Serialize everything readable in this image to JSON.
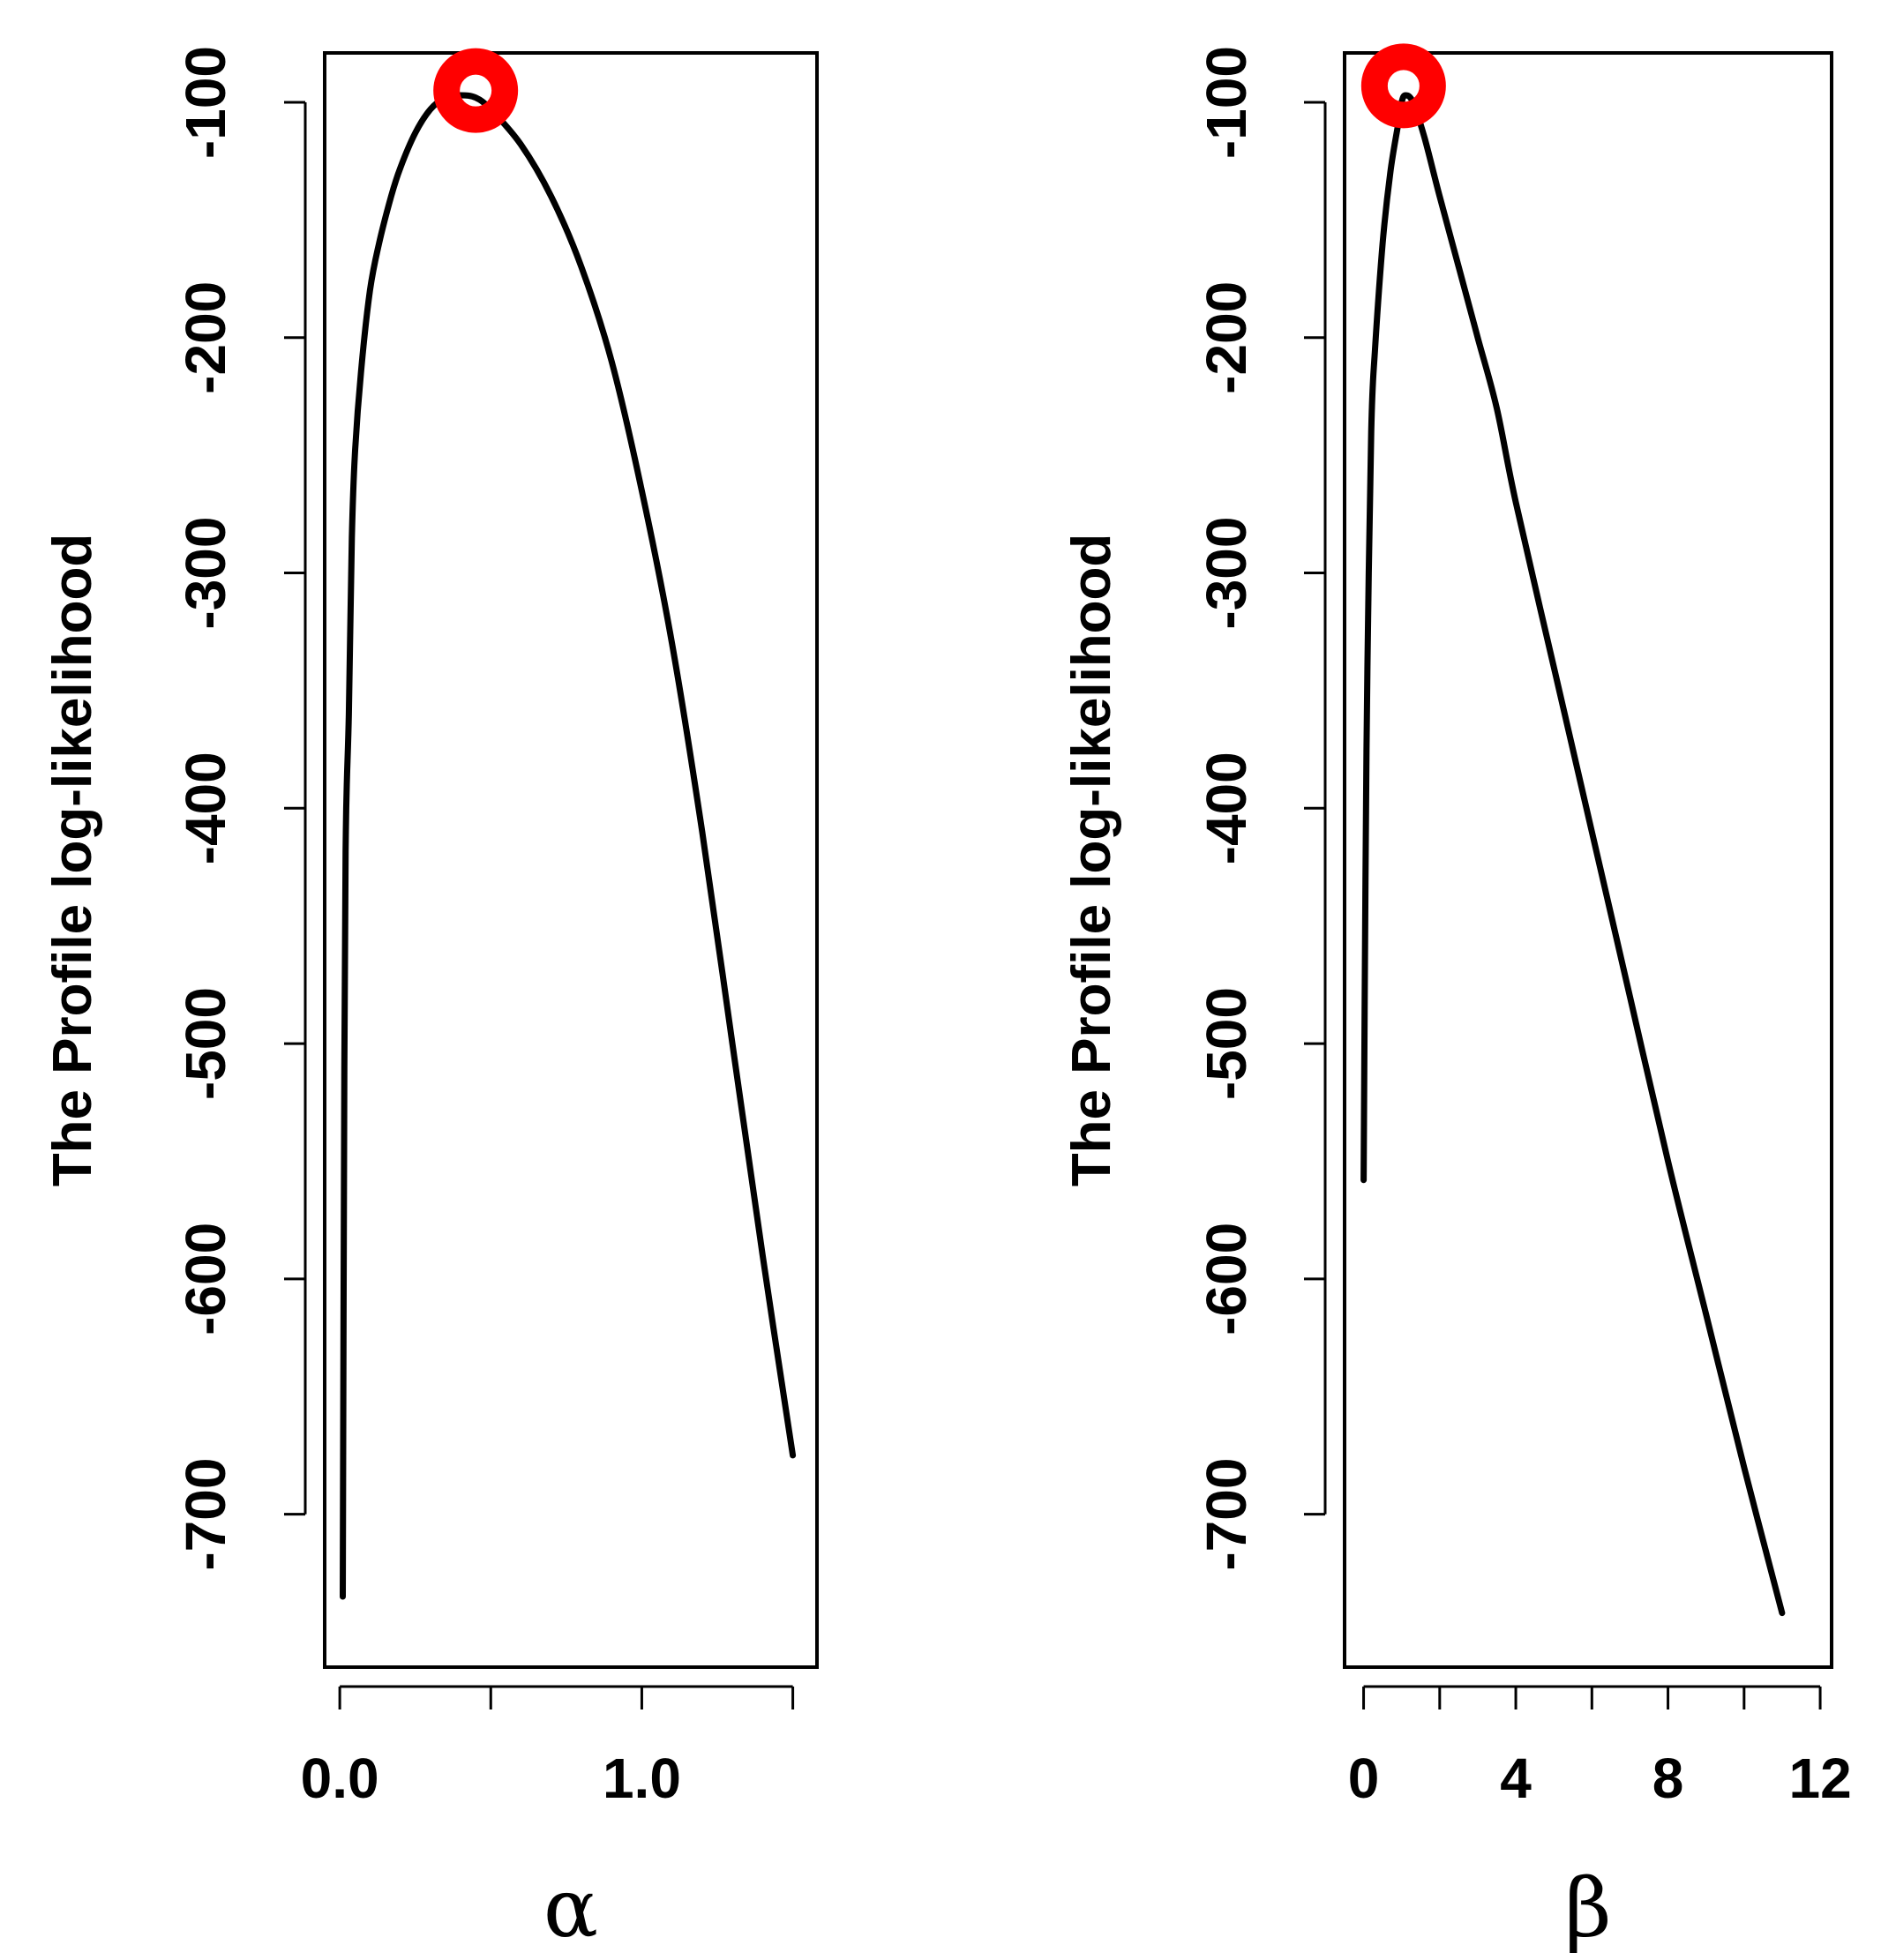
{
  "chart_data": [
    {
      "type": "line",
      "ylabel": "The Profile log-likelihood",
      "xlabel": "α",
      "xlim": [
        -0.05,
        1.58
      ],
      "ylim": [
        -765,
        -79
      ],
      "xticks": [
        0.0,
        0.5,
        1.0,
        1.5
      ],
      "xtick_labels": [
        "0.0",
        "",
        "1.0",
        ""
      ],
      "yticks": [
        -100,
        -200,
        -300,
        -400,
        -500,
        -600,
        -700
      ],
      "ytick_labels": [
        "-100",
        "-200",
        "-300",
        "-400",
        "-500",
        "-600",
        "-700"
      ],
      "line_color": "#000000",
      "series": [
        {
          "x": [
            0.01,
            0.015,
            0.02,
            0.03,
            0.04,
            0.05,
            0.07,
            0.1,
            0.13,
            0.17,
            0.2,
            0.25,
            0.3,
            0.35,
            0.4,
            0.45,
            0.5,
            0.6,
            0.7,
            0.8,
            0.9,
            1.0,
            1.1,
            1.2,
            1.3,
            1.4,
            1.5
          ],
          "y": [
            -735,
            -510,
            -410,
            -360,
            -285,
            -250,
            -215,
            -180,
            -160,
            -140,
            -128,
            -113,
            -103,
            -98,
            -97,
            -98,
            -103,
            -118,
            -140,
            -170,
            -210,
            -265,
            -330,
            -410,
            -500,
            -590,
            -675
          ]
        }
      ],
      "highlight_point": {
        "x": 0.45,
        "y": -95,
        "color": "#ff0000"
      },
      "grid": false
    },
    {
      "type": "line",
      "ylabel": "The Profile log-likelihood",
      "xlabel": "β",
      "xlim": [
        -0.5,
        12.3
      ],
      "ylim": [
        -765,
        -79
      ],
      "xticks": [
        0,
        2,
        4,
        6,
        8,
        10,
        12
      ],
      "xtick_labels": [
        "0",
        "",
        "4",
        "",
        "8",
        "",
        "12"
      ],
      "yticks": [
        -100,
        -200,
        -300,
        -400,
        -500,
        -600,
        -700
      ],
      "ytick_labels": [
        "-100",
        "-200",
        "-300",
        "-400",
        "-500",
        "-600",
        "-700"
      ],
      "line_color": "#000000",
      "series": [
        {
          "x": [
            0.0,
            0.05,
            0.1,
            0.2,
            0.3,
            0.5,
            0.7,
            0.9,
            1.0,
            1.1,
            1.3,
            1.6,
            2.0,
            2.5,
            3.0,
            3.5,
            4.0,
            5.0,
            6.0,
            7.0,
            8.0,
            9.0,
            10.0,
            11.0
          ],
          "y": [
            -558,
            -430,
            -340,
            -240,
            -205,
            -160,
            -130,
            -110,
            -100,
            -97,
            -100,
            -115,
            -140,
            -170,
            -200,
            -230,
            -270,
            -340,
            -410,
            -480,
            -550,
            -615,
            -680,
            -742
          ]
        }
      ],
      "highlight_point": {
        "x": 1.05,
        "y": -93,
        "color": "#ff0000"
      },
      "grid": false
    }
  ]
}
